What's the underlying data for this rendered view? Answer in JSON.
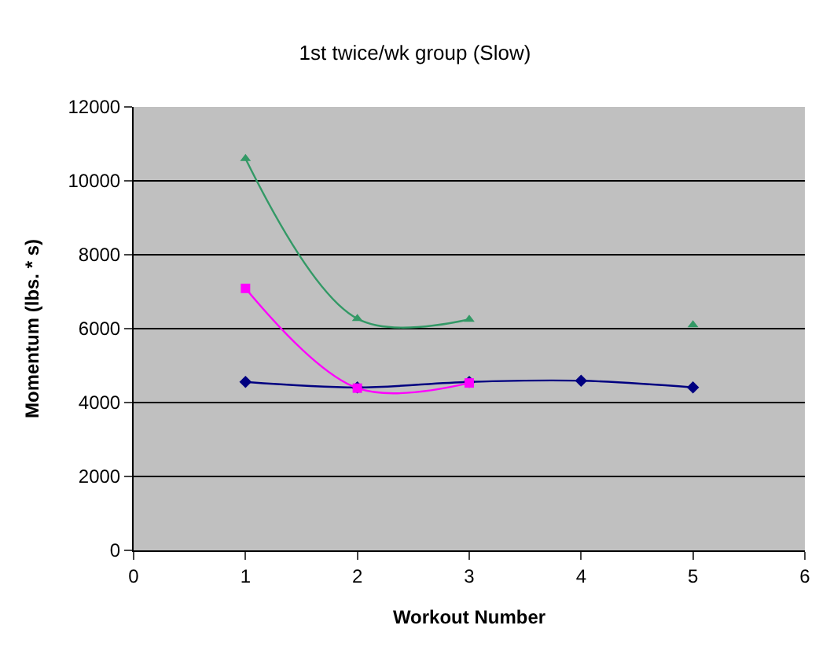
{
  "chart_data": {
    "type": "line",
    "title": "1st twice/wk group (Slow)",
    "xlabel": "Workout Number",
    "ylabel": "Momentum (lbs. * s)",
    "x": [
      1,
      2,
      3,
      4,
      5
    ],
    "series": [
      {
        "color": "#000080",
        "marker": "diamond",
        "values": [
          4560,
          4410,
          4560,
          4590,
          4410
        ]
      },
      {
        "color": "#ff00ff",
        "marker": "square",
        "values": [
          7090,
          4390,
          4530,
          null,
          null
        ]
      },
      {
        "color": "#339966",
        "marker": "triangle",
        "values": [
          10600,
          6270,
          6250,
          null,
          6100
        ]
      }
    ],
    "xlim": [
      0,
      6
    ],
    "xticks": [
      0,
      1,
      2,
      3,
      4,
      5,
      6
    ],
    "ylim": [
      0,
      12000
    ],
    "yticks": [
      0,
      2000,
      4000,
      6000,
      8000,
      10000,
      12000
    ],
    "grid": "y"
  }
}
